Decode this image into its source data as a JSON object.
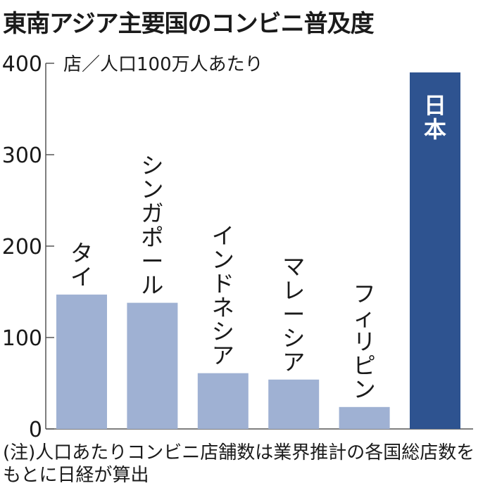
{
  "chart_data": {
    "type": "bar",
    "title": "東南アジア主要国のコンビニ普及度",
    "ylabel": "店／人口100万人あたり",
    "xlabel": "",
    "ylim": [
      0,
      400
    ],
    "yticks": [
      0,
      100,
      200,
      300,
      400
    ],
    "grid": false,
    "legend": "none",
    "categories": [
      "タイ",
      "シンガポール",
      "インドネシア",
      "マレーシア",
      "フィリピン",
      "日本"
    ],
    "values": [
      147,
      138,
      61,
      54,
      24,
      390
    ],
    "highlight_index": 5,
    "colors": {
      "bar": "#9fb1d3",
      "highlight": "#2e5390",
      "axis": "#555555"
    },
    "note_lines": [
      "(注)人口あたりコンビニ店舗数は業界推計の各国総店数を",
      "もとに日経が算出"
    ]
  }
}
